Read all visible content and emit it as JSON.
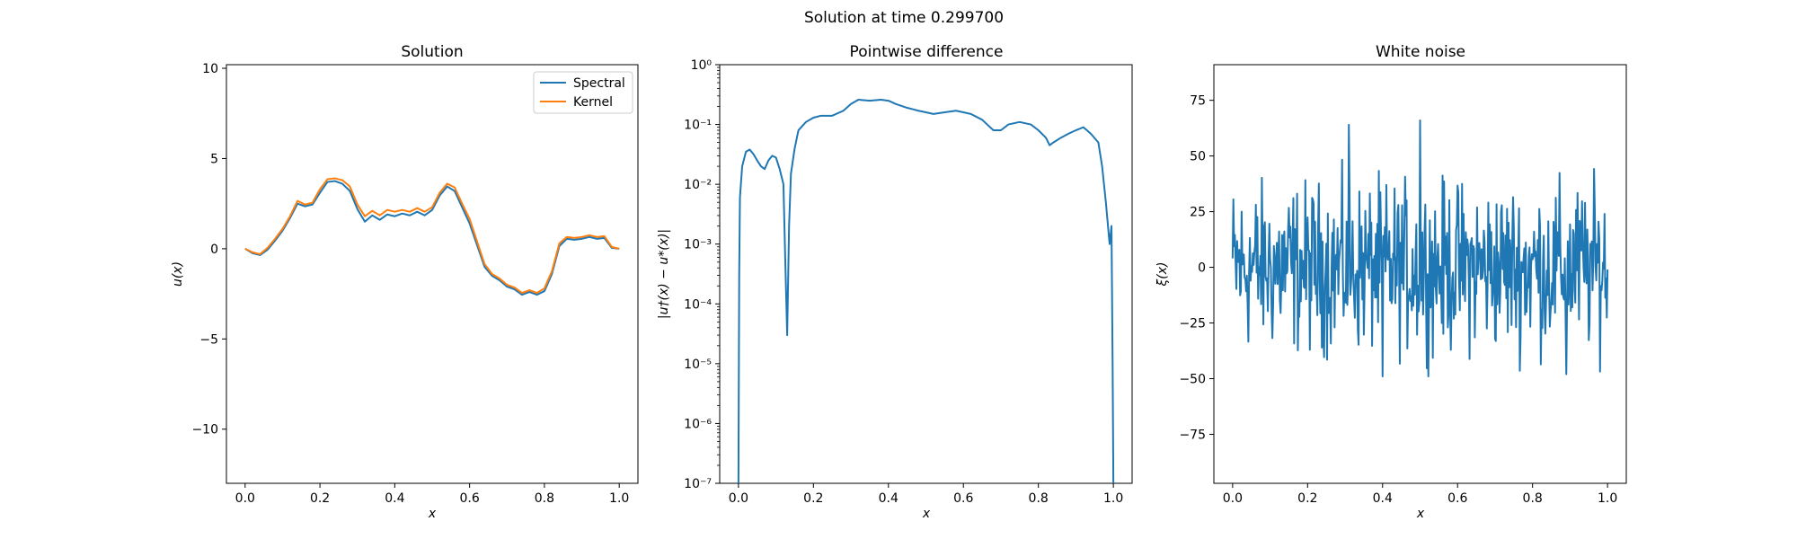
{
  "figure": {
    "suptitle": "Solution at time 0.299700"
  },
  "colors": {
    "spectral": "#1f77b4",
    "kernel": "#ff7f0e",
    "noise": "#1f77b4",
    "diff": "#1f77b4"
  },
  "chart_data": [
    {
      "type": "line",
      "title": "Solution",
      "xlabel": "x",
      "ylabel": "u(x)",
      "xlim": [
        -0.05,
        1.05
      ],
      "ylim": [
        -13.0,
        10.2
      ],
      "xticks": [
        0.0,
        0.2,
        0.4,
        0.6,
        0.8,
        1.0
      ],
      "xtick_labels": [
        "0.0",
        "0.2",
        "0.4",
        "0.6",
        "0.8",
        "1.0"
      ],
      "yticks": [
        10,
        5,
        0,
        -5,
        -10
      ],
      "ytick_labels": [
        "10",
        "5",
        "0",
        "−5",
        "−10"
      ],
      "legend": {
        "position": "top-right",
        "entries": [
          "Spectral",
          "Kernel"
        ]
      },
      "x": [
        0.0,
        0.02,
        0.04,
        0.06,
        0.08,
        0.1,
        0.12,
        0.14,
        0.16,
        0.18,
        0.2,
        0.22,
        0.24,
        0.26,
        0.28,
        0.3,
        0.32,
        0.34,
        0.36,
        0.38,
        0.4,
        0.42,
        0.44,
        0.46,
        0.48,
        0.5,
        0.52,
        0.54,
        0.56,
        0.58,
        0.6,
        0.62,
        0.64,
        0.66,
        0.68,
        0.7,
        0.72,
        0.74,
        0.76,
        0.78,
        0.8,
        0.82,
        0.84,
        0.86,
        0.88,
        0.9,
        0.92,
        0.94,
        0.96,
        0.98,
        1.0
      ],
      "series": [
        {
          "name": "Spectral",
          "values": [
            0.0,
            -0.25,
            -0.35,
            -0.05,
            0.45,
            1.0,
            1.7,
            2.5,
            2.35,
            2.45,
            3.1,
            3.7,
            3.75,
            3.6,
            3.2,
            2.2,
            1.5,
            1.85,
            1.6,
            1.9,
            1.8,
            1.95,
            1.85,
            2.05,
            1.85,
            2.15,
            2.95,
            3.45,
            3.2,
            2.3,
            1.4,
            0.2,
            -1.0,
            -1.5,
            -1.75,
            -2.1,
            -2.25,
            -2.55,
            -2.4,
            -2.55,
            -2.35,
            -1.4,
            0.15,
            0.55,
            0.5,
            0.55,
            0.65,
            0.55,
            0.6,
            0.05,
            0.0
          ]
        },
        {
          "name": "Kernel",
          "values": [
            0.0,
            -0.2,
            -0.3,
            0.05,
            0.55,
            1.1,
            1.8,
            2.65,
            2.45,
            2.55,
            3.3,
            3.85,
            3.9,
            3.8,
            3.45,
            2.45,
            1.8,
            2.1,
            1.85,
            2.15,
            2.05,
            2.15,
            2.05,
            2.25,
            2.05,
            2.3,
            3.1,
            3.6,
            3.4,
            2.5,
            1.65,
            0.4,
            -0.85,
            -1.4,
            -1.65,
            -2.0,
            -2.15,
            -2.45,
            -2.3,
            -2.45,
            -2.2,
            -1.25,
            0.3,
            0.65,
            0.6,
            0.65,
            0.75,
            0.65,
            0.7,
            0.1,
            0.0
          ]
        }
      ]
    },
    {
      "type": "line",
      "title": "Pointwise difference",
      "xlabel": "x",
      "ylabel": "|u†(x) − u*(x)|",
      "yscale": "log",
      "xlim": [
        -0.05,
        1.05
      ],
      "ylim": [
        1e-07,
        1
      ],
      "xticks": [
        0.0,
        0.2,
        0.4,
        0.6,
        0.8,
        1.0
      ],
      "xtick_labels": [
        "0.0",
        "0.2",
        "0.4",
        "0.6",
        "0.8",
        "1.0"
      ],
      "yticks": [
        1,
        0.1,
        0.01,
        0.001,
        0.0001,
        1e-05,
        1e-06,
        1e-07
      ],
      "ytick_labels": [
        "10⁰",
        "10⁻¹",
        "10⁻²",
        "10⁻³",
        "10⁻⁴",
        "10⁻⁵",
        "10⁻⁶",
        "10⁻⁷"
      ],
      "x": [
        0.0,
        0.002,
        0.004,
        0.006,
        0.01,
        0.02,
        0.03,
        0.04,
        0.05,
        0.06,
        0.07,
        0.08,
        0.09,
        0.1,
        0.11,
        0.12,
        0.125,
        0.13,
        0.135,
        0.14,
        0.15,
        0.16,
        0.18,
        0.2,
        0.22,
        0.25,
        0.28,
        0.3,
        0.32,
        0.35,
        0.38,
        0.4,
        0.42,
        0.45,
        0.48,
        0.5,
        0.52,
        0.55,
        0.58,
        0.6,
        0.62,
        0.65,
        0.68,
        0.7,
        0.72,
        0.75,
        0.78,
        0.8,
        0.82,
        0.83,
        0.84,
        0.86,
        0.88,
        0.9,
        0.92,
        0.94,
        0.96,
        0.97,
        0.98,
        0.99,
        0.995,
        0.998,
        1.0
      ],
      "values": [
        1e-07,
        0.0003,
        0.006,
        0.009,
        0.02,
        0.035,
        0.038,
        0.032,
        0.025,
        0.02,
        0.018,
        0.025,
        0.03,
        0.028,
        0.018,
        0.01,
        0.0005,
        3e-05,
        0.002,
        0.015,
        0.04,
        0.08,
        0.11,
        0.13,
        0.14,
        0.14,
        0.17,
        0.22,
        0.26,
        0.25,
        0.26,
        0.25,
        0.22,
        0.19,
        0.17,
        0.16,
        0.15,
        0.16,
        0.17,
        0.16,
        0.15,
        0.12,
        0.08,
        0.08,
        0.1,
        0.11,
        0.1,
        0.08,
        0.06,
        0.045,
        0.05,
        0.06,
        0.07,
        0.08,
        0.09,
        0.07,
        0.05,
        0.02,
        0.005,
        0.001,
        0.002,
        1e-05,
        1e-07
      ]
    },
    {
      "type": "line",
      "title": "White noise",
      "xlabel": "x",
      "ylabel": "ξ(x)",
      "xlim": [
        -0.05,
        1.05
      ],
      "ylim": [
        -97,
        91
      ],
      "xticks": [
        0.0,
        0.2,
        0.4,
        0.6,
        0.8,
        1.0
      ],
      "xtick_labels": [
        "0.0",
        "0.2",
        "0.4",
        "0.6",
        "0.8",
        "1.0"
      ],
      "yticks": [
        75,
        50,
        25,
        0,
        -25,
        -50,
        -75
      ],
      "ytick_labels": [
        "75",
        "50",
        "25",
        "0",
        "−25",
        "−50",
        "−75"
      ],
      "sample_count": 500,
      "value_range": [
        -49,
        66
      ]
    }
  ]
}
